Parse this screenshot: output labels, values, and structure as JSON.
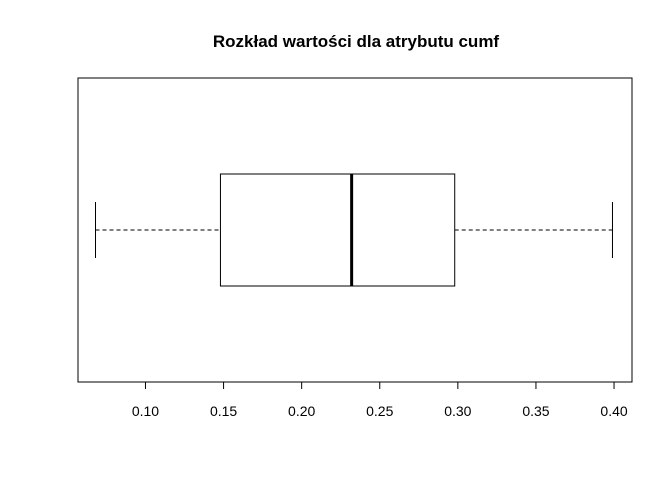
{
  "chart_data": {
    "type": "boxplot",
    "orientation": "horizontal",
    "title": "Rozkład wartości dla atrybutu cumf",
    "xlabel": "",
    "ylabel": "",
    "xlim": [
      0.0568,
      0.4115
    ],
    "x_ticks": [
      0.1,
      0.15,
      0.2,
      0.25,
      0.3,
      0.35,
      0.4
    ],
    "x_tick_labels": [
      "0.10",
      "0.15",
      "0.20",
      "0.25",
      "0.30",
      "0.35",
      "0.40"
    ],
    "series": [
      {
        "min": 0.068,
        "q1": 0.148,
        "median": 0.232,
        "q3": 0.298,
        "max": 0.399
      }
    ],
    "whisker_style": "dashed",
    "grid": false,
    "colors": {
      "stroke": "#000000",
      "background": "#ffffff"
    }
  }
}
